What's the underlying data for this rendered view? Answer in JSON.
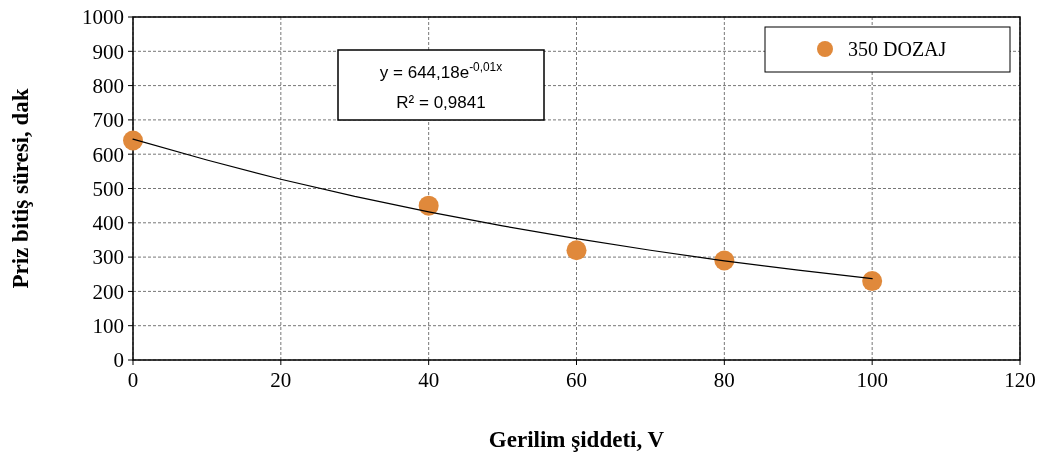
{
  "chart_data": {
    "type": "scatter",
    "xlabel": "Gerilim şiddeti, V",
    "ylabel": "Priz bitiş süresi, dak",
    "xlim": [
      0,
      120
    ],
    "xticks": [
      0,
      20,
      40,
      60,
      80,
      100,
      120
    ],
    "ylim": [
      0,
      1000
    ],
    "yticks": [
      0,
      100,
      200,
      300,
      400,
      500,
      600,
      700,
      800,
      900,
      1000
    ],
    "grid": true,
    "legend": "top right",
    "marker": "circle",
    "series": [
      {
        "name": "350 DOZAJ",
        "color": "#e0893b",
        "x": [
          0,
          40,
          60,
          80,
          100
        ],
        "values": [
          640,
          450,
          320,
          290,
          230
        ]
      },
      {
        "type": "line",
        "color": "#000000",
        "line_style": "solid",
        "marker": "none",
        "x": [
          0,
          10,
          20,
          30,
          40,
          50,
          60,
          70,
          80,
          90,
          100
        ],
        "values": [
          644,
          583,
          527,
          477,
          432,
          391,
          354,
          320,
          289,
          262,
          237
        ]
      }
    ],
    "annotations": [
      "y = 644,18e$^{-0,01x}$",
      "R² = 0,9841"
    ]
  }
}
